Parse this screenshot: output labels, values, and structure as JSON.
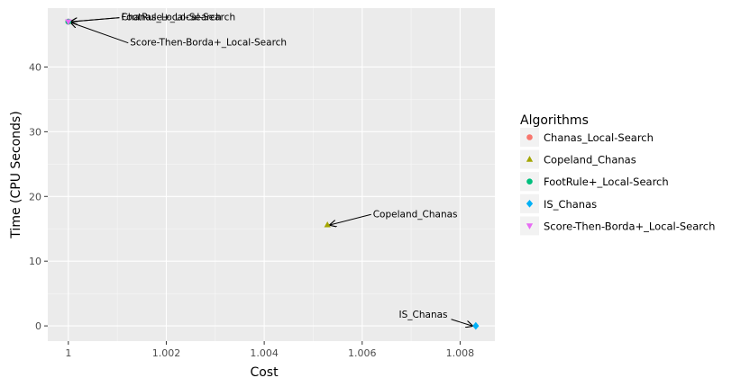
{
  "chart_data": {
    "type": "scatter",
    "xlabel": "Cost",
    "ylabel": "Time (CPU Seconds)",
    "xlim": [
      0.99958,
      1.00871
    ],
    "ylim": [
      -2.35,
      49.1
    ],
    "x_ticks": [
      1,
      1.002,
      1.004,
      1.006,
      1.008
    ],
    "x_tick_labels": [
      "1",
      "1.002",
      "1.004",
      "1.006",
      "1.008"
    ],
    "y_ticks": [
      0,
      10,
      20,
      30,
      40
    ],
    "y_tick_labels": [
      "0",
      "10",
      "20",
      "30",
      "40"
    ],
    "grid": true,
    "legend": {
      "title": "Algorithms",
      "position": "right",
      "entries": [
        {
          "label": "Chanas_Local-Search",
          "color": "#F8766D",
          "shape": "circle"
        },
        {
          "label": "Copeland_Chanas",
          "color": "#A3A500",
          "shape": "triangle"
        },
        {
          "label": "FootRule+_Local-Search",
          "color": "#00BF7D",
          "shape": "circle"
        },
        {
          "label": "IS_Chanas",
          "color": "#00B0F6",
          "shape": "diamond"
        },
        {
          "label": "Score-Then-Borda+_Local-Search",
          "color": "#E76BF3",
          "shape": "triangle-down"
        }
      ]
    },
    "series": [
      {
        "name": "Chanas_Local-Search",
        "x": 1.0,
        "y": 47.0,
        "color": "#F8766D",
        "shape": "circle"
      },
      {
        "name": "Copeland_Chanas",
        "x": 1.00529,
        "y": 15.6,
        "color": "#A3A500",
        "shape": "triangle"
      },
      {
        "name": "FootRule+_Local-Search",
        "x": 1.0,
        "y": 47.0,
        "color": "#00BF7D",
        "shape": "circle"
      },
      {
        "name": "IS_Chanas",
        "x": 1.00832,
        "y": 0.0,
        "color": "#00B0F6",
        "shape": "diamond"
      },
      {
        "name": "Score-Then-Borda+_Local-Search",
        "x": 1.0,
        "y": 47.0,
        "color": "#E76BF3",
        "shape": "triangle-down"
      }
    ],
    "annotations": [
      {
        "text": "Chanas_Local-Search",
        "point": [
          1.0,
          47.0
        ],
        "label_at": [
          1.00108,
          47.2
        ]
      },
      {
        "text": "FootRule+_Local-Search",
        "point": [
          1.0,
          47.0
        ],
        "label_at": [
          1.00108,
          47.2
        ]
      },
      {
        "text": "Score-Then-Borda+_Local-Search",
        "point": [
          1.0,
          47.0
        ],
        "label_at": [
          1.00126,
          43.3
        ]
      },
      {
        "text": "Copeland_Chanas",
        "point": [
          1.00529,
          15.6
        ],
        "label_at": [
          1.00622,
          16.8
        ]
      },
      {
        "text": "IS_Chanas",
        "point": [
          1.00832,
          0.0
        ],
        "label_at": [
          1.00675,
          1.3
        ]
      }
    ]
  }
}
